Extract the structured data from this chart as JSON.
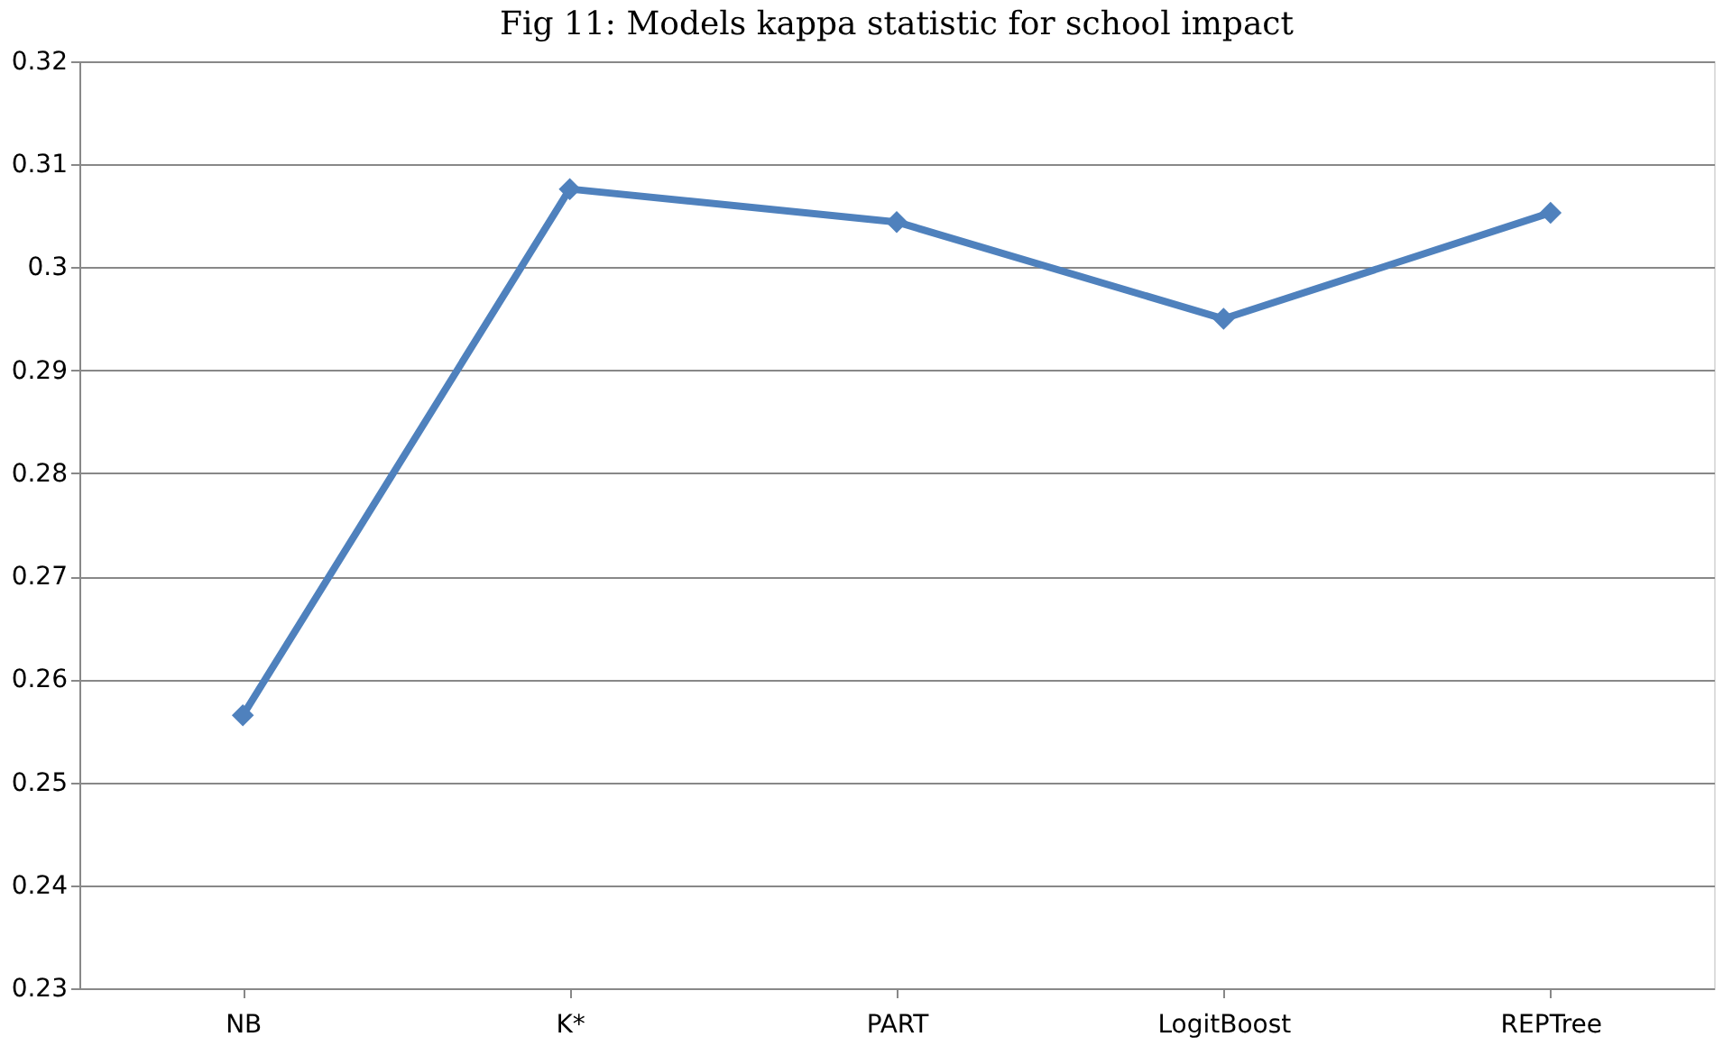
{
  "chart_data": {
    "type": "line",
    "title": "Fig 11: Models kappa statistic for school impact",
    "categories": [
      "NB",
      "K*",
      "PART",
      "LogitBoost",
      "REPTree"
    ],
    "series": [
      {
        "color": "#4f81bd",
        "values": [
          0.2565,
          0.3076,
          0.3044,
          0.295,
          0.3053
        ]
      }
    ],
    "ylim": [
      0.23,
      0.32
    ],
    "yticks": [
      0.23,
      0.24,
      0.25,
      0.26,
      0.27,
      0.28,
      0.29,
      0.3,
      0.31,
      0.32
    ],
    "grid": "y",
    "marker": "diamond",
    "line_style": "solid",
    "legend": false
  }
}
